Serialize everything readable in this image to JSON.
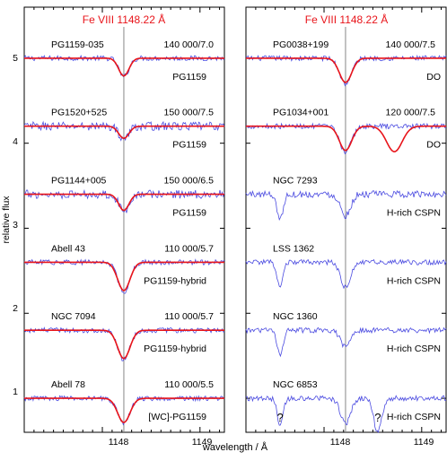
{
  "axes": {
    "ylabel": "relative flux",
    "xlabel": "wavelength / Å",
    "yticks": [
      "1",
      "2",
      "3",
      "4",
      "5"
    ],
    "xticks": [
      "1148",
      "1149"
    ]
  },
  "colors": {
    "model": "#e8141a",
    "observed": "#4a4ae0",
    "frame": "#000000",
    "rest_line": "#888888",
    "title": "#e8141a"
  },
  "chart_data": [
    {
      "type": "line",
      "title": "Fe VIII 1148.22 Å",
      "xlim": [
        1147.2,
        1149.25
      ],
      "ylim": [
        0.6,
        5.6
      ],
      "rest_wavelength": 1148.22,
      "xlabel": "wavelength / Å",
      "ylabel": "relative flux",
      "spectra": [
        {
          "star": "PG1159-035",
          "params": "140 000/7.0",
          "class": "PG1159",
          "offset": 5.0,
          "line_center": 1148.22,
          "depth": 0.22,
          "width": 0.05,
          "noise": 0.03
        },
        {
          "star": "PG1520+525",
          "params": "150 000/7.5",
          "class": "PG1159",
          "offset": 4.2,
          "line_center": 1148.22,
          "depth": 0.15,
          "width": 0.05,
          "noise": 0.05
        },
        {
          "star": "PG1144+005",
          "params": "150 000/6.5",
          "class": "PG1159",
          "offset": 3.4,
          "line_center": 1148.22,
          "depth": 0.2,
          "width": 0.05,
          "noise": 0.05
        },
        {
          "star": "Abell 43",
          "params": "110 000/5.7",
          "class": "PG1159-hybrid",
          "offset": 2.6,
          "line_center": 1148.22,
          "depth": 0.35,
          "width": 0.06,
          "noise": 0.03
        },
        {
          "star": "NGC 7094",
          "params": "110 000/5.7",
          "class": "PG1159-hybrid",
          "offset": 1.8,
          "line_center": 1148.22,
          "depth": 0.35,
          "width": 0.06,
          "noise": 0.03
        },
        {
          "star": "Abell 78",
          "params": "110 000/5.5",
          "class": "[WC]-PG1159",
          "offset": 1.0,
          "line_center": 1148.22,
          "depth": 0.3,
          "width": 0.06,
          "noise": 0.03
        }
      ]
    },
    {
      "type": "line",
      "title": "Fe VIII 1148.22 Å",
      "xlim": [
        1147.2,
        1149.25
      ],
      "ylim": [
        0.6,
        5.6
      ],
      "rest_wavelength": 1148.22,
      "xlabel": "wavelength / Å",
      "spectra": [
        {
          "star": "PG0038+199",
          "params": "140 000/7.5",
          "class": "DO",
          "offset": 5.0,
          "line_center": 1148.22,
          "depth": 0.3,
          "width": 0.06,
          "noise": 0.03
        },
        {
          "star": "PG1034+001",
          "params": "120 000/7.5",
          "class": "DO",
          "offset": 4.2,
          "line_center": 1148.22,
          "depth": 0.3,
          "width": 0.06,
          "noise": 0.03
        },
        {
          "star": "NGC 7293",
          "params": "",
          "class": "H-rich CSPN",
          "offset": 3.4,
          "line_center": 1148.22,
          "depth": 0.25,
          "width": 0.05,
          "noise": 0.04
        },
        {
          "star": "LSS 1362",
          "params": "",
          "class": "H-rich CSPN",
          "offset": 2.6,
          "line_center": 1148.22,
          "depth": 0.3,
          "width": 0.05,
          "noise": 0.03
        },
        {
          "star": "NGC 1360",
          "params": "",
          "class": "H-rich CSPN",
          "offset": 1.8,
          "line_center": 1148.22,
          "depth": 0.2,
          "width": 0.05,
          "noise": 0.03
        },
        {
          "star": "NGC 6853",
          "params": "",
          "class": "H-rich CSPN",
          "offset": 1.0,
          "line_center": 1148.22,
          "depth": 0.3,
          "width": 0.05,
          "noise": 0.03
        }
      ],
      "annotations": [
        {
          "text": "?",
          "x": 1147.55
        },
        {
          "text": "?",
          "x": 1148.55
        }
      ]
    }
  ]
}
